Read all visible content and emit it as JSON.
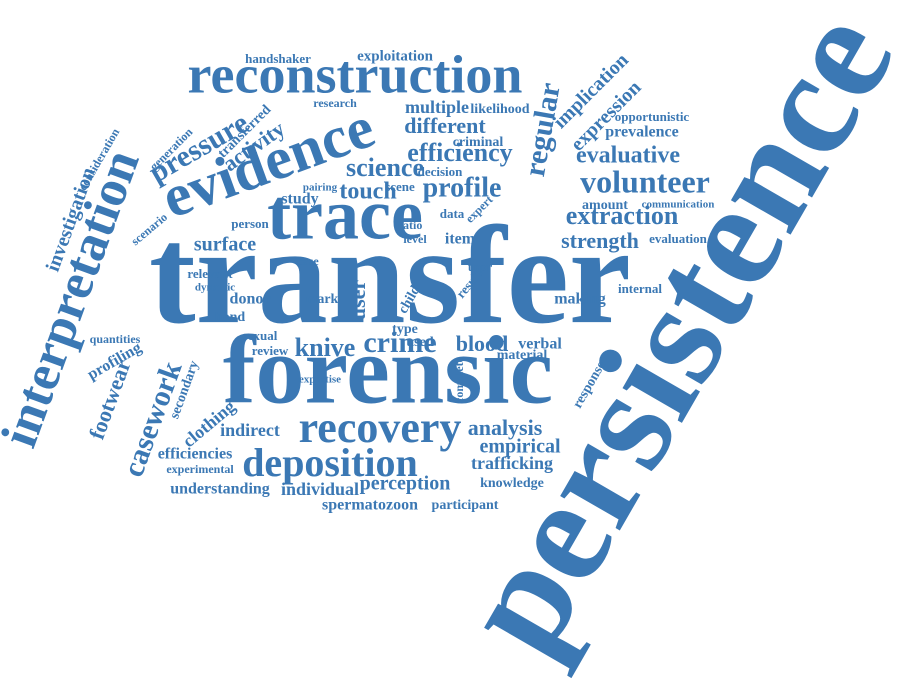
{
  "words": [
    "persistence",
    "transfer",
    "forensic",
    "trace",
    "evidence",
    "reconstruction",
    "interpretation",
    "recovery",
    "deposition",
    "volunteer",
    "evaluative",
    "extraction",
    "strength",
    "efficiency",
    "different",
    "science",
    "touch",
    "profile",
    "regular",
    "pressure",
    "investigation",
    "casework",
    "footwear",
    "crime",
    "blood",
    "knive",
    "analysis",
    "empirical",
    "trafficking",
    "perception",
    "individual",
    "understanding",
    "spermatozoon",
    "participant",
    "knowledge",
    "surface",
    "activity",
    "implication",
    "expression",
    "prevalence",
    "opportunistic",
    "amount",
    "evaluation",
    "exploitation",
    "handshaker",
    "multiple",
    "likelihood",
    "criminal",
    "decision",
    "study",
    "item",
    "user",
    "making",
    "verbal",
    "internal",
    "material",
    "donor",
    "hand",
    "review",
    "sexual",
    "indirect",
    "clothing",
    "efficiencies",
    "experimental",
    "profiling",
    "quantities",
    "secondary",
    "generation",
    "transferred",
    "consideration",
    "scenario",
    "research",
    "communication",
    "person",
    "case",
    "mark",
    "dynamic",
    "relevant",
    "used",
    "type",
    "expertise",
    "complete",
    "response",
    "level",
    "data",
    "expert",
    "scene",
    "pairing",
    "result",
    "child",
    "ratio",
    "tppr"
  ]
}
